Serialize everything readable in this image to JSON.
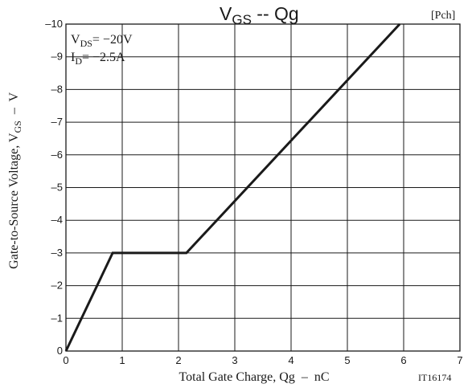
{
  "chart_data": {
    "type": "line",
    "title": {
      "main": "V",
      "main_sub": "GS",
      "sep": " -- ",
      "tail": "Qg"
    },
    "channel_tag": "[Pch]",
    "conditions": [
      {
        "main": "V",
        "sub": "DS",
        "value": "= −20V"
      },
      {
        "main": "I",
        "sub": "D",
        "value": "= −2.5A"
      }
    ],
    "xlabel": "Total Gate Charge, Qg  –  nC",
    "ylabel": {
      "prefix": "Gate-to-Source Voltage, V",
      "sub": "GS",
      "suffix": "  –  V"
    },
    "figure_id": "IT16174",
    "xlim": [
      0,
      7
    ],
    "ylim": [
      0,
      -10
    ],
    "x_ticks": [
      0,
      1,
      2,
      3,
      4,
      5,
      6,
      7
    ],
    "x_tick_labels": [
      "0",
      "1",
      "2",
      "3",
      "4",
      "5",
      "6",
      "7"
    ],
    "y_ticks": [
      0,
      -1,
      -2,
      -3,
      -4,
      -5,
      -6,
      -7,
      -8,
      -9,
      -10
    ],
    "y_tick_labels": [
      "0",
      "–1",
      "–2",
      "–3",
      "–4",
      "–5",
      "–6",
      "–7",
      "–8",
      "–9",
      "–10"
    ],
    "grid": true,
    "series": [
      {
        "x": [
          0,
          0.83,
          2.14,
          5.93
        ],
        "y": [
          0,
          -3.0,
          -3.0,
          -10.0
        ],
        "color": "#1a1a1a"
      }
    ]
  }
}
